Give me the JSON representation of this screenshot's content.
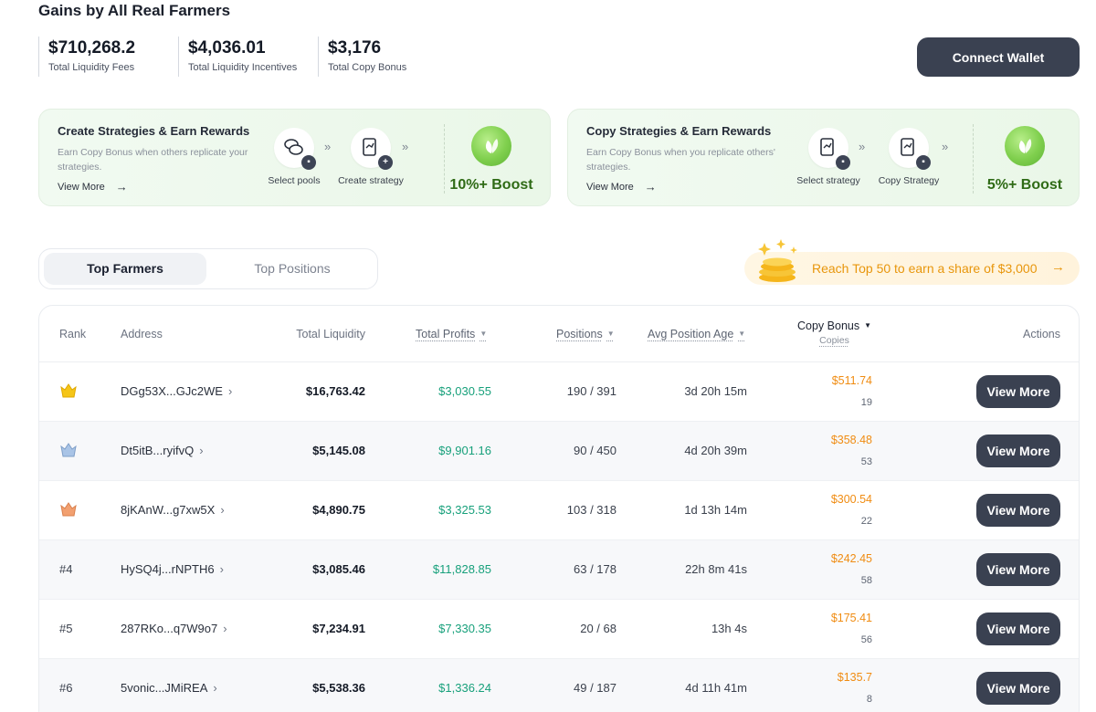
{
  "page_title": "Gains by All Real Farmers",
  "stats": [
    {
      "value": "$710,268.2",
      "label": "Total Liquidity Fees"
    },
    {
      "value": "$4,036.01",
      "label": "Total Liquidity Incentives"
    },
    {
      "value": "$3,176",
      "label": "Total Copy Bonus"
    }
  ],
  "connect_wallet_label": "Connect Wallet",
  "promos": [
    {
      "title": "Create Strategies & Earn Rewards",
      "description": "Earn Copy Bonus when others replicate your strategies.",
      "view_more": "View More",
      "steps": [
        {
          "label": "Select pools",
          "icon": "coins-icon"
        },
        {
          "label": "Create strategy",
          "icon": "strategy-add-icon"
        }
      ],
      "boost": "10%+ Boost"
    },
    {
      "title": "Copy Strategies & Earn Rewards",
      "description": "Earn Copy Bonus when you replicate others' strategies.",
      "view_more": "View More",
      "steps": [
        {
          "label": "Select strategy",
          "icon": "strategy-icon"
        },
        {
          "label": "Copy Strategy",
          "icon": "strategy-copy-icon"
        }
      ],
      "boost": "5%+ Boost"
    }
  ],
  "tabs": [
    {
      "label": "Top Farmers",
      "active": true
    },
    {
      "label": "Top Positions",
      "active": false
    }
  ],
  "reward_banner": "Reach Top 50 to earn a share of $3,000",
  "table": {
    "headers": {
      "rank": "Rank",
      "address": "Address",
      "total_liquidity": "Total Liquidity",
      "total_profits": "Total Profits",
      "positions": "Positions",
      "avg_position_age": "Avg Position Age",
      "copy_bonus": "Copy Bonus",
      "copies": "Copies",
      "actions": "Actions"
    },
    "rows": [
      {
        "rank": "",
        "medal": "gold",
        "address": "DGg53X...GJc2WE",
        "liquidity": "$16,763.42",
        "profits": "$3,030.55",
        "positions": "190 / 391",
        "age": "3d 20h 15m",
        "bonus": "$511.74",
        "copies": "19",
        "action": "View More"
      },
      {
        "rank": "",
        "medal": "silver",
        "address": "Dt5itB...ryifvQ",
        "liquidity": "$5,145.08",
        "profits": "$9,901.16",
        "positions": "90 / 450",
        "age": "4d 20h 39m",
        "bonus": "$358.48",
        "copies": "53",
        "action": "View More"
      },
      {
        "rank": "",
        "medal": "bronze",
        "address": "8jKAnW...g7xw5X",
        "liquidity": "$4,890.75",
        "profits": "$3,325.53",
        "positions": "103 / 318",
        "age": "1d 13h 14m",
        "bonus": "$300.54",
        "copies": "22",
        "action": "View More"
      },
      {
        "rank": "#4",
        "medal": "",
        "address": "HySQ4j...rNPTH6",
        "liquidity": "$3,085.46",
        "profits": "$11,828.85",
        "positions": "63 / 178",
        "age": "22h 8m 41s",
        "bonus": "$242.45",
        "copies": "58",
        "action": "View More"
      },
      {
        "rank": "#5",
        "medal": "",
        "address": "287RKo...q7W9o7",
        "liquidity": "$7,234.91",
        "profits": "$7,330.35",
        "positions": "20 / 68",
        "age": "13h 4s",
        "bonus": "$175.41",
        "copies": "56",
        "action": "View More"
      },
      {
        "rank": "#6",
        "medal": "",
        "address": "5vonic...JMiREA",
        "liquidity": "$5,538.36",
        "profits": "$1,336.24",
        "positions": "49 / 187",
        "age": "4d 11h 41m",
        "bonus": "$135.7",
        "copies": "8",
        "action": "View More"
      }
    ]
  },
  "colors": {
    "primary_button": "#3a4151",
    "profit_green": "#17a07b",
    "bonus_orange": "#f08c12",
    "boost_green": "#2f6b16",
    "gold": "#f5c518",
    "silver": "#a9c4e6",
    "bronze": "#f2a070"
  }
}
